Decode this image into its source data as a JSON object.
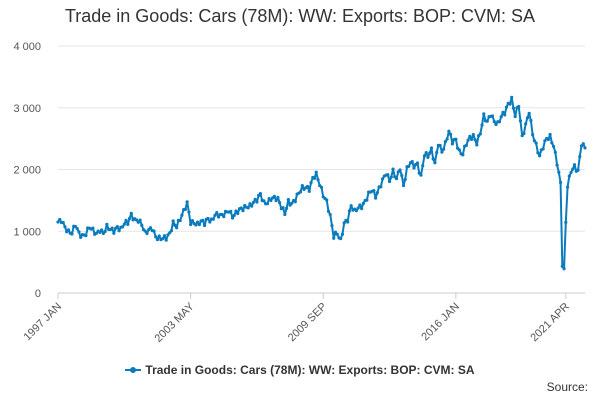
{
  "chart_data": {
    "type": "line",
    "title": "Trade in Goods: Cars (78M): WW: Exports: BOP: CVM: SA",
    "xlabel": "",
    "ylabel": "",
    "ylim": [
      0,
      4000
    ],
    "yticks": [
      0,
      1000,
      2000,
      3000,
      4000
    ],
    "ytick_labels": [
      "0",
      "1 000",
      "2 000",
      "3 000",
      "4 000"
    ],
    "xticks": [
      {
        "label": "1997 JAN",
        "index": 0
      },
      {
        "label": "2003 MAY",
        "index": 76
      },
      {
        "label": "2009 SEP",
        "index": 152
      },
      {
        "label": "2016 JAN",
        "index": 228
      },
      {
        "label": "2021 APR",
        "index": 291
      }
    ],
    "legend_position": "bottom",
    "series": [
      {
        "name": "Trade in Goods: Cars (78M): WW: Exports: BOP: CVM: SA",
        "color": "#0a7bbd",
        "anchors": [
          [
            0,
            1150
          ],
          [
            2,
            1200
          ],
          [
            4,
            1080
          ],
          [
            6,
            980
          ],
          [
            8,
            950
          ],
          [
            10,
            1100
          ],
          [
            12,
            980
          ],
          [
            14,
            940
          ],
          [
            16,
            960
          ],
          [
            18,
            1050
          ],
          [
            20,
            1000
          ],
          [
            22,
            960
          ],
          [
            24,
            1040
          ],
          [
            26,
            980
          ],
          [
            28,
            1060
          ],
          [
            30,
            1010
          ],
          [
            32,
            1000
          ],
          [
            34,
            1080
          ],
          [
            36,
            1050
          ],
          [
            38,
            1130
          ],
          [
            40,
            1120
          ],
          [
            42,
            1250
          ],
          [
            44,
            1190
          ],
          [
            46,
            1200
          ],
          [
            48,
            1120
          ],
          [
            50,
            950
          ],
          [
            52,
            1000
          ],
          [
            54,
            1050
          ],
          [
            56,
            930
          ],
          [
            58,
            900
          ],
          [
            60,
            880
          ],
          [
            62,
            870
          ],
          [
            64,
            950
          ],
          [
            66,
            1150
          ],
          [
            68,
            1100
          ],
          [
            70,
            1200
          ],
          [
            72,
            1300
          ],
          [
            74,
            1440
          ],
          [
            76,
            1150
          ],
          [
            78,
            1160
          ],
          [
            80,
            1120
          ],
          [
            82,
            1150
          ],
          [
            84,
            1110
          ],
          [
            86,
            1200
          ],
          [
            88,
            1180
          ],
          [
            90,
            1290
          ],
          [
            92,
            1260
          ],
          [
            94,
            1230
          ],
          [
            96,
            1280
          ],
          [
            98,
            1350
          ],
          [
            100,
            1260
          ],
          [
            102,
            1300
          ],
          [
            104,
            1330
          ],
          [
            106,
            1350
          ],
          [
            108,
            1400
          ],
          [
            110,
            1430
          ],
          [
            112,
            1480
          ],
          [
            114,
            1500
          ],
          [
            116,
            1580
          ],
          [
            118,
            1450
          ],
          [
            120,
            1480
          ],
          [
            122,
            1550
          ],
          [
            124,
            1540
          ],
          [
            126,
            1500
          ],
          [
            128,
            1380
          ],
          [
            130,
            1300
          ],
          [
            132,
            1500
          ],
          [
            134,
            1450
          ],
          [
            136,
            1500
          ],
          [
            138,
            1600
          ],
          [
            140,
            1700
          ],
          [
            142,
            1730
          ],
          [
            144,
            1700
          ],
          [
            146,
            1850
          ],
          [
            148,
            1900
          ],
          [
            150,
            1750
          ],
          [
            152,
            1600
          ],
          [
            154,
            1500
          ],
          [
            156,
            1250
          ],
          [
            158,
            900
          ],
          [
            160,
            950
          ],
          [
            162,
            850
          ],
          [
            164,
            1150
          ],
          [
            166,
            1200
          ],
          [
            168,
            1400
          ],
          [
            170,
            1300
          ],
          [
            172,
            1380
          ],
          [
            174,
            1420
          ],
          [
            176,
            1500
          ],
          [
            178,
            1600
          ],
          [
            180,
            1650
          ],
          [
            182,
            1550
          ],
          [
            184,
            1700
          ],
          [
            186,
            1850
          ],
          [
            188,
            1950
          ],
          [
            190,
            1800
          ],
          [
            192,
            1950
          ],
          [
            194,
            1850
          ],
          [
            196,
            2050
          ],
          [
            198,
            1750
          ],
          [
            200,
            2000
          ],
          [
            202,
            2100
          ],
          [
            204,
            2050
          ],
          [
            206,
            2100
          ],
          [
            208,
            1900
          ],
          [
            210,
            2250
          ],
          [
            212,
            2200
          ],
          [
            214,
            2300
          ],
          [
            216,
            2100
          ],
          [
            218,
            2450
          ],
          [
            220,
            2300
          ],
          [
            222,
            2400
          ],
          [
            224,
            2600
          ],
          [
            226,
            2450
          ],
          [
            228,
            2500
          ],
          [
            230,
            2300
          ],
          [
            232,
            2250
          ],
          [
            234,
            2400
          ],
          [
            236,
            2500
          ],
          [
            238,
            2550
          ],
          [
            240,
            2450
          ],
          [
            242,
            2600
          ],
          [
            244,
            2850
          ],
          [
            246,
            2750
          ],
          [
            248,
            2900
          ],
          [
            250,
            2800
          ],
          [
            252,
            2750
          ],
          [
            254,
            2850
          ],
          [
            256,
            2900
          ],
          [
            258,
            3050
          ],
          [
            260,
            3150
          ],
          [
            262,
            2900
          ],
          [
            264,
            3050
          ],
          [
            266,
            2500
          ],
          [
            268,
            2700
          ],
          [
            270,
            2950
          ],
          [
            272,
            2600
          ],
          [
            274,
            2400
          ],
          [
            276,
            2200
          ],
          [
            278,
            2350
          ],
          [
            280,
            2500
          ],
          [
            282,
            2550
          ],
          [
            284,
            2400
          ],
          [
            286,
            2100
          ],
          [
            288,
            1750
          ],
          [
            289,
            450
          ],
          [
            290,
            350
          ],
          [
            291,
            1150
          ],
          [
            292,
            1750
          ],
          [
            294,
            2000
          ],
          [
            296,
            2050
          ],
          [
            298,
            1950
          ],
          [
            300,
            2400
          ],
          [
            302,
            2350
          ]
        ]
      }
    ]
  },
  "legend": {
    "label": "Trade in Goods: Cars (78M): WW: Exports: BOP: CVM: SA"
  },
  "footer": {
    "source_label": "Source:"
  }
}
